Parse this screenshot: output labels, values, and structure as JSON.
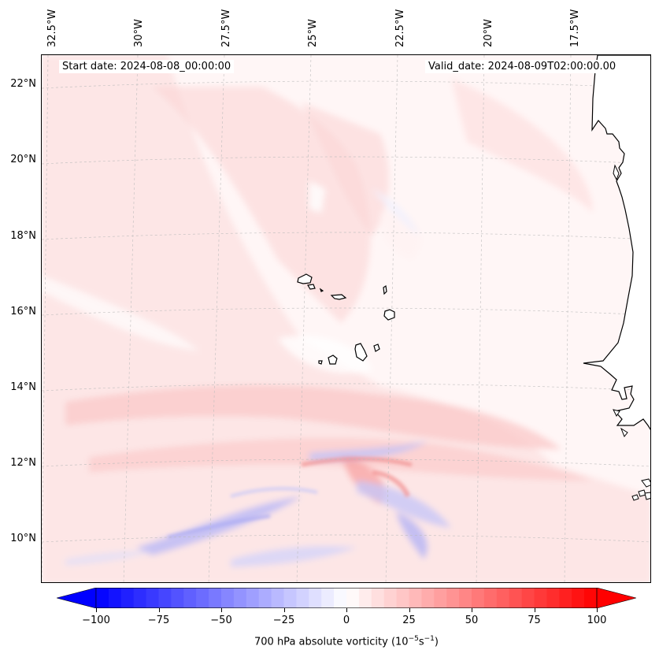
{
  "map": {
    "longitude_labels": [
      "32.5°W",
      "30°W",
      "27.5°W",
      "25°W",
      "22.5°W",
      "20°W",
      "17.5°W"
    ],
    "latitude_labels": [
      "22°N",
      "20°N",
      "18°N",
      "16°N",
      "14°N",
      "12°N",
      "10°N"
    ],
    "start_date": "Start date: 2024-08-08_00:00:00",
    "valid_date": "Valid_date: 2024-08-09T02:00:00.00",
    "coastline_color": "#000000",
    "gridline_color": "#bbbbbb",
    "field_colors": {
      "positive": "#ff0000",
      "neutral": "#ffffff",
      "negative": "#0000ff"
    }
  },
  "colorbar": {
    "ticks": [
      "−100",
      "−75",
      "−50",
      "−25",
      "0",
      "25",
      "50",
      "75",
      "100"
    ],
    "tick_values": [
      -100,
      -75,
      -50,
      -25,
      0,
      25,
      50,
      75,
      100
    ],
    "range": [
      -100,
      100
    ],
    "label": "700 hPa absolute vorticity (10",
    "label_exp1": "−5",
    "label_mid": "s",
    "label_exp2": "−1",
    "label_end": ")",
    "colormap": "bwr",
    "extend": "both"
  }
}
